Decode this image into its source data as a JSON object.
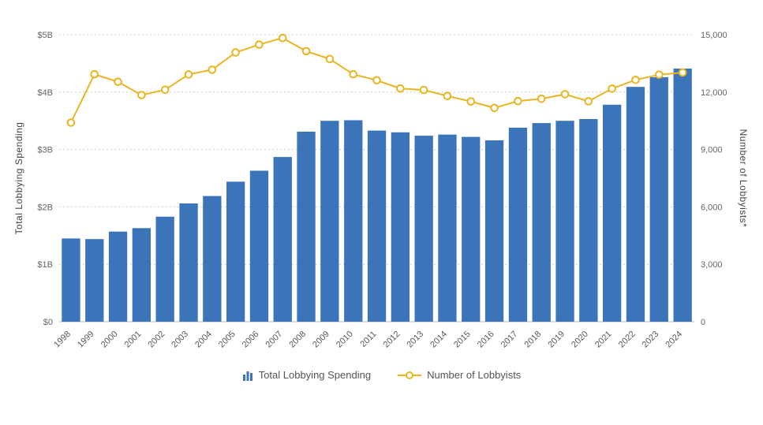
{
  "chart_data": {
    "type": "bar+line",
    "categories": [
      "1998",
      "1999",
      "2000",
      "2001",
      "2002",
      "2003",
      "2004",
      "2005",
      "2006",
      "2007",
      "2008",
      "2009",
      "2010",
      "2011",
      "2012",
      "2013",
      "2014",
      "2015",
      "2016",
      "2017",
      "2018",
      "2019",
      "2020",
      "2021",
      "2022",
      "2023",
      "2024"
    ],
    "series": [
      {
        "name": "Total Lobbying Spending",
        "type": "bar",
        "axis": "left",
        "unit": "billions USD",
        "color": "#3b74b9",
        "values": [
          1.45,
          1.44,
          1.57,
          1.63,
          1.83,
          2.06,
          2.19,
          2.44,
          2.63,
          2.87,
          3.31,
          3.5,
          3.51,
          3.33,
          3.3,
          3.24,
          3.26,
          3.22,
          3.16,
          3.38,
          3.46,
          3.5,
          3.53,
          3.78,
          4.09,
          4.26,
          4.41
        ]
      },
      {
        "name": "Number of Lobbyists",
        "type": "line",
        "axis": "right",
        "color": "#eab521",
        "values": [
          10405,
          12930,
          12540,
          11845,
          12125,
          12925,
          13170,
          14070,
          14480,
          14825,
          14140,
          13730,
          12930,
          12620,
          12190,
          12110,
          11800,
          11510,
          11170,
          11530,
          11650,
          11890,
          11520,
          12180,
          12640,
          12910,
          13020
        ]
      }
    ],
    "left_axis": {
      "title": "Total Lobbying Spending",
      "ticks": [
        "$0",
        "$1B",
        "$2B",
        "$3B",
        "$4B",
        "$5B"
      ],
      "min": 0,
      "max": 5
    },
    "right_axis": {
      "title": "Number of Lobbyists*",
      "ticks": [
        "0",
        "3,000",
        "6,000",
        "9,000",
        "12,000",
        "15,000"
      ],
      "min": 0,
      "max": 15000
    },
    "grid": "horizontal-dashed",
    "legend_position": "bottom"
  },
  "legend": {
    "spending_label": "Total Lobbying Spending",
    "lobbyists_label": "Number of Lobbyists"
  }
}
